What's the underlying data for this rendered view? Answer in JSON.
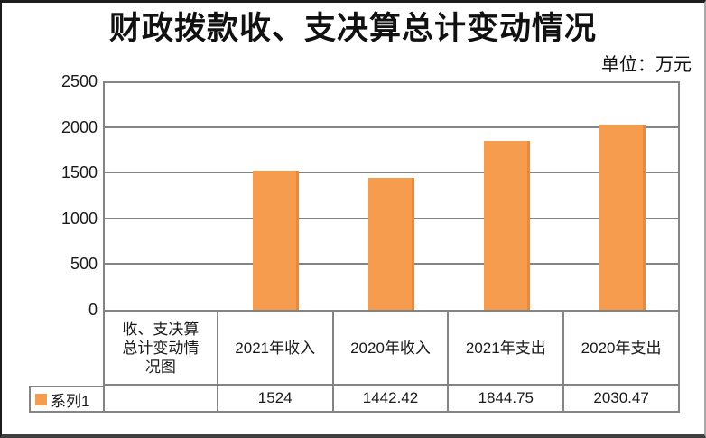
{
  "chart_data": {
    "type": "bar",
    "title": "财政拨款收、支决算总计变动情况",
    "unit_label": "单位：万元",
    "categories": [
      "收、支决算总计变动情况图",
      "2021年收入",
      "2020年收入",
      "2021年支出",
      "2020年支出"
    ],
    "category_display": [
      "收、支决算\n总计变动情\n况图",
      "2021年收入",
      "2020年收入",
      "2021年支出",
      "2020年支出"
    ],
    "series": [
      {
        "name": "系列1",
        "values": [
          null,
          1524,
          1442.42,
          1844.75,
          2030.47
        ]
      }
    ],
    "value_display": [
      "",
      "1524",
      "1442.42",
      "1844.75",
      "2030.47"
    ],
    "ylim": [
      0,
      2500
    ],
    "yticks": [
      0,
      500,
      1000,
      1500,
      2000,
      2500
    ],
    "grid": true,
    "legend_position": "table-left",
    "colors": {
      "bar_fill": "#F59C4F",
      "bar_edge": "#EF8733",
      "grid_line": "#848484",
      "text": "#1A1A1A"
    }
  }
}
